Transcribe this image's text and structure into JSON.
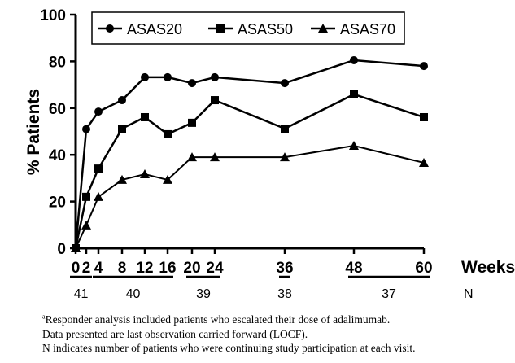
{
  "chart_data": {
    "type": "line",
    "ylabel": "% Patients",
    "xlabel": "Weeks",
    "ylim": [
      0,
      100
    ],
    "yticks": [
      0,
      20,
      40,
      60,
      80,
      100
    ],
    "xticks": [
      0,
      2,
      4,
      8,
      12,
      16,
      20,
      24,
      36,
      48,
      60
    ],
    "grid": false,
    "legend_position": "top",
    "series": [
      {
        "name": "ASAS20",
        "marker": "circle",
        "x": [
          0,
          2,
          4,
          8,
          12,
          16,
          20,
          24,
          36,
          48,
          60
        ],
        "values": [
          0,
          51,
          58.5,
          63.4,
          73.2,
          73.2,
          70.7,
          73.2,
          70.7,
          80.5,
          78
        ]
      },
      {
        "name": "ASAS50",
        "marker": "square",
        "x": [
          0,
          2,
          4,
          8,
          12,
          16,
          20,
          24,
          36,
          48,
          60
        ],
        "values": [
          0,
          22,
          34.1,
          51.2,
          56.1,
          48.8,
          53.7,
          63.4,
          51.2,
          65.9,
          56.1
        ]
      },
      {
        "name": "ASAS70",
        "marker": "triangle",
        "x": [
          0,
          2,
          4,
          8,
          12,
          16,
          20,
          24,
          36,
          48,
          60
        ],
        "values": [
          0,
          9.8,
          22,
          29.3,
          31.7,
          29.3,
          39,
          39,
          39,
          43.9,
          36.6
        ]
      }
    ],
    "n_row": {
      "label": "N",
      "groups": [
        {
          "from": 0,
          "to": 2,
          "n": "41"
        },
        {
          "from": 4,
          "to": 16,
          "n": "40"
        },
        {
          "from": 20,
          "to": 24,
          "n": "39"
        },
        {
          "from": 36,
          "to": 36,
          "n": "38"
        },
        {
          "from": 48,
          "to": 60,
          "n": "37"
        }
      ]
    }
  },
  "footnotes": {
    "superscript": "a",
    "line1": "Responder analysis included patients who escalated their dose of adalimumab.",
    "line2": "Data presented are last observation carried forward (LOCF).",
    "line3": "N indicates number of patients who were continuing study participation at each visit."
  }
}
